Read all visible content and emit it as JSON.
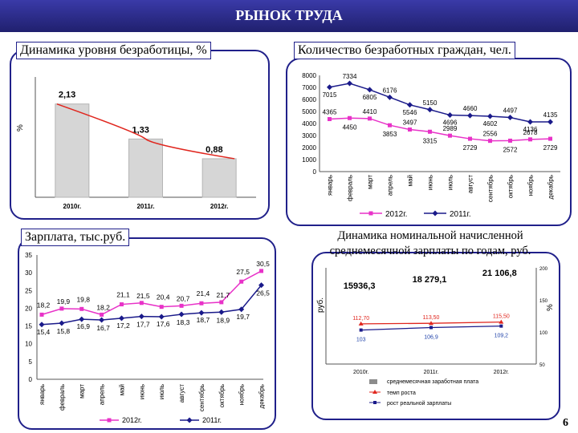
{
  "header": {
    "title": "РЫНОК  ТРУДА"
  },
  "page_number": "6",
  "colors": {
    "header": "#2b2b8c",
    "red": "#e0261e",
    "magenta": "#e832c8",
    "navy": "#1a1a8a",
    "bar": "#d6d6d6"
  },
  "chart_data": [
    {
      "id": "unemployment-rate",
      "type": "bar",
      "title": "Динамика уровня безработицы, %",
      "ylabel": "%",
      "categories": [
        "2010г.",
        "2011г.",
        "2012г."
      ],
      "values": [
        2.13,
        1.33,
        0.88
      ],
      "value_labels": [
        "2,13",
        "1,33",
        "0,88"
      ],
      "trend": "red curve",
      "ylim": [
        0,
        2.6
      ]
    },
    {
      "id": "unemployed-count",
      "type": "line",
      "title": "Количество безработных граждан, чел.",
      "categories": [
        "январь",
        "февраль",
        "март",
        "апрель",
        "май",
        "июнь",
        "июль",
        "август",
        "сентябрь",
        "октябрь",
        "ноябрь",
        "декабрь"
      ],
      "yticks": [
        "0",
        "1000",
        "2000",
        "3000",
        "4000",
        "5000",
        "6000",
        "7000",
        "8000"
      ],
      "ylim": [
        0,
        8000
      ],
      "series": [
        {
          "name": "2012г.",
          "color": "#e832c8",
          "values": [
            4365,
            4450,
            4410,
            3853,
            3497,
            3315,
            2989,
            2729,
            2556,
            2572,
            2678,
            2729
          ],
          "labels": [
            "4365",
            "4450",
            "4410",
            "3853",
            "3497",
            "3315",
            "2989",
            "2729",
            "2556",
            "2572",
            "2678",
            "2729"
          ]
        },
        {
          "name": "2011г.",
          "color": "#1a1a8a",
          "values": [
            7015,
            7334,
            6805,
            6176,
            5546,
            5150,
            4696,
            4660,
            4602,
            4497,
            4136,
            4135
          ],
          "labels": [
            "7015",
            "7334",
            "6805",
            "6176",
            "5546",
            "5150",
            "4696",
            "4660",
            "4602",
            "4497",
            "4136",
            "4135"
          ]
        }
      ],
      "legend": [
        "2012г.",
        "2011г."
      ]
    },
    {
      "id": "salary-monthly",
      "type": "line",
      "title": "Зарплата, тыс.руб.",
      "categories": [
        "январь",
        "февраль",
        "март",
        "апрель",
        "май",
        "июнь",
        "июль",
        "август",
        "сентябрь",
        "октябрь",
        "ноябрь",
        "декабрь"
      ],
      "yticks": [
        "0",
        "5",
        "10",
        "15",
        "20",
        "25",
        "30",
        "35"
      ],
      "ylim": [
        0,
        35
      ],
      "series": [
        {
          "name": "2012г.",
          "color": "#e832c8",
          "values": [
            18.2,
            19.9,
            19.8,
            18.2,
            21.1,
            21.5,
            20.4,
            20.7,
            21.4,
            21.7,
            27.5,
            30.5
          ],
          "labels": [
            "18,2",
            "19,9",
            "19,8",
            "18,2",
            "21,1",
            "21,5",
            "20,4",
            "20,7",
            "21,4",
            "21,7",
            "27,5",
            "30,5"
          ]
        },
        {
          "name": "2011г.",
          "color": "#1a1a8a",
          "values": [
            15.4,
            15.8,
            16.9,
            16.7,
            17.2,
            17.7,
            17.6,
            18.3,
            18.7,
            18.9,
            19.7,
            26.5
          ],
          "labels": [
            "15,4",
            "15,8",
            "16,9",
            "16,7",
            "17,2",
            "17,7",
            "17,6",
            "18,3",
            "18,7",
            "18,9",
            "19,7",
            "26,5"
          ]
        }
      ],
      "legend": [
        "2012г.",
        "2011г."
      ]
    },
    {
      "id": "nominal-salary",
      "type": "bar",
      "title": "Динамика номинальной начисленной среднемесячной зарплаты по годам, руб.",
      "ylabel": "руб.",
      "y2label": "%",
      "categories": [
        "2010г.",
        "2011г.",
        "2012г."
      ],
      "values": [
        15936.3,
        18279.1,
        21106.8
      ],
      "value_labels": [
        "15936,3",
        "18 279,1",
        "21 106,8"
      ],
      "y2ticks": [
        "50",
        "100",
        "150",
        "200"
      ],
      "y2lim": [
        50,
        200
      ],
      "growth_rate": {
        "values": [
          112.7,
          113.5,
          115.5
        ],
        "labels": [
          "112,70",
          "113,50",
          "115,50"
        ]
      },
      "real_growth": {
        "values": [
          103,
          106.9,
          109.2
        ],
        "labels": [
          "103",
          "106,9",
          "109,2"
        ]
      },
      "legend": [
        "среднемесячная заработная плата",
        "темп роста",
        "рост реальной зарплаты"
      ]
    }
  ]
}
